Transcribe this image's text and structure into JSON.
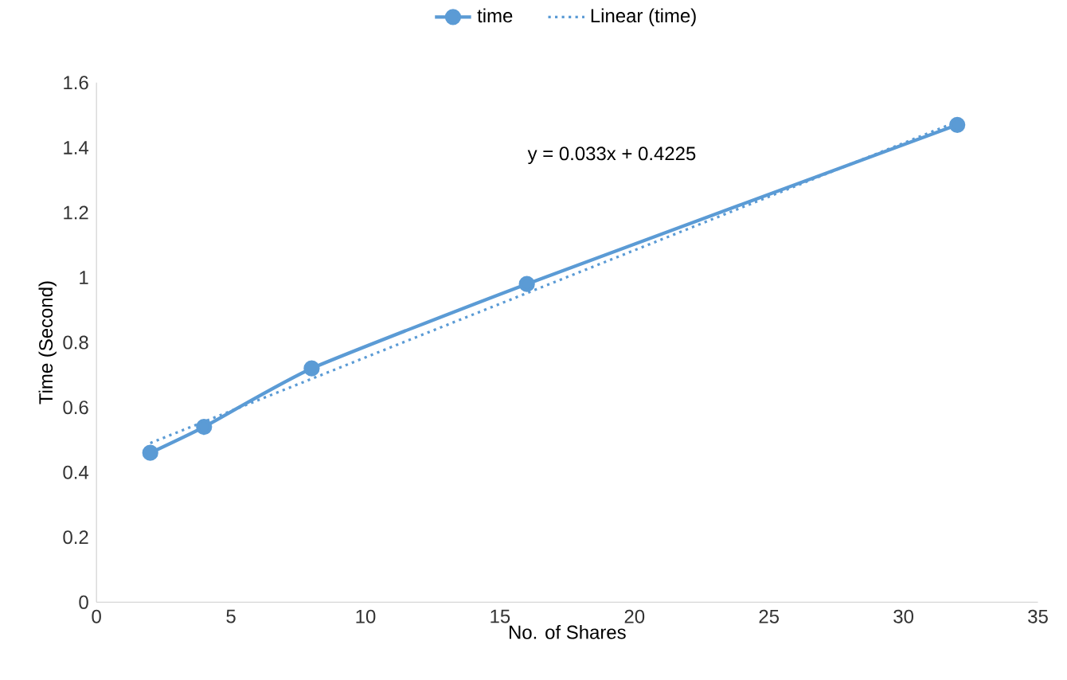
{
  "chart_data": {
    "type": "line",
    "xlabel": "No. of  Shares",
    "ylabel": "Time (Second)",
    "series": [
      {
        "name": "time",
        "color": "#5b9bd5",
        "x": [
          2,
          4,
          8,
          16,
          32
        ],
        "values": [
          0.46,
          0.54,
          0.72,
          0.98,
          1.47
        ],
        "marker": "circle",
        "line_style": "solid"
      },
      {
        "name": "Linear (time)",
        "color": "#5b9bd5",
        "x": [
          2,
          32
        ],
        "values": [
          0.49,
          1.48
        ],
        "marker": "none",
        "line_style": "dotted"
      }
    ],
    "xlim": [
      0,
      35
    ],
    "xticks": [
      0,
      5,
      10,
      15,
      20,
      25,
      30,
      35
    ],
    "ylim": [
      0,
      1.6
    ],
    "yticks": [
      0,
      0.2,
      0.4,
      0.6,
      0.8,
      1,
      1.2,
      1.4,
      1.6
    ],
    "grid": false,
    "legend": "top",
    "annotations": [
      "y = 0.033x + 0.4225"
    ]
  }
}
